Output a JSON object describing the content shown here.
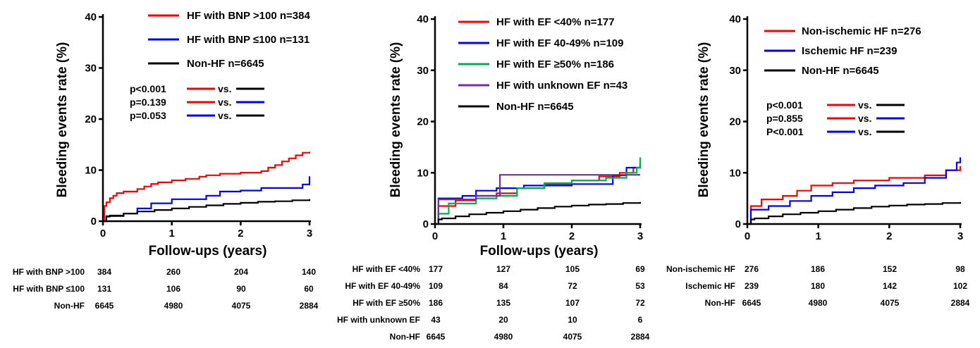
{
  "chart_data": [
    {
      "type": "line",
      "xlabel": "Follow-ups (years)",
      "ylabel": "Bleeding events rate (%)",
      "xlim": [
        0,
        3
      ],
      "ylim": [
        0,
        40
      ],
      "xticks": [
        "0",
        "1",
        "2",
        "3"
      ],
      "yticks": [
        "0",
        "10",
        "20",
        "30",
        "40"
      ],
      "grid": false,
      "legend_position": "top-right",
      "series": [
        {
          "name": "HF with BNP >100 n=384",
          "color": "#ff0000",
          "x": [
            0,
            0.02,
            0.05,
            0.1,
            0.15,
            0.2,
            0.3,
            0.5,
            0.6,
            0.7,
            0.8,
            1.0,
            1.2,
            1.4,
            1.5,
            1.7,
            2.0,
            2.3,
            2.4,
            2.5,
            2.6,
            2.7,
            2.8,
            2.9,
            3.0
          ],
          "y": [
            0,
            3,
            3.7,
            4.5,
            5.0,
            5.5,
            5.8,
            6.3,
            6.8,
            7.3,
            7.6,
            8.0,
            8.3,
            8.7,
            9.0,
            9.3,
            9.5,
            9.8,
            10.5,
            11.0,
            11.7,
            12.3,
            12.9,
            13.4,
            13.6
          ]
        },
        {
          "name": "HF with BNP ≤100 n=131",
          "color": "#0000ff",
          "x": [
            0,
            0.05,
            0.3,
            0.5,
            0.7,
            1.0,
            1.5,
            1.7,
            2.0,
            2.3,
            2.9,
            3.0
          ],
          "y": [
            0,
            1.0,
            1.5,
            2.5,
            3.5,
            4.3,
            5.0,
            5.8,
            6.0,
            6.5,
            7.2,
            8.8
          ]
        },
        {
          "name": "Non-HF n=6645",
          "color": "#000000",
          "x": [
            0,
            0.05,
            0.1,
            0.3,
            0.5,
            0.75,
            1.0,
            1.25,
            1.5,
            1.75,
            2.0,
            2.25,
            2.5,
            2.75,
            3.0
          ],
          "y": [
            0,
            0.9,
            1.1,
            1.5,
            1.9,
            2.2,
            2.5,
            2.8,
            3.1,
            3.4,
            3.6,
            3.8,
            3.9,
            4.1,
            4.3
          ]
        }
      ],
      "pvalues": [
        {
          "label": "p<0.001",
          "vs": "vs.",
          "left_color": "#ff0000",
          "right_color": "#000000"
        },
        {
          "label": "p=0.139",
          "vs": "vs.",
          "left_color": "#ff0000",
          "right_color": "#0000ff"
        },
        {
          "label": "p=0.053",
          "vs": "vs.",
          "left_color": "#0000ff",
          "right_color": "#000000"
        }
      ],
      "risk_table": {
        "rows": [
          {
            "label": "HF with BNP >100",
            "values": [
              "384",
              "260",
              "204",
              "140"
            ]
          },
          {
            "label": "HF with BNP ≤100",
            "values": [
              "131",
              "106",
              "90",
              "60"
            ]
          },
          {
            "label": "Non-HF",
            "values": [
              "6645",
              "4980",
              "4075",
              "2884"
            ]
          }
        ]
      }
    },
    {
      "type": "line",
      "xlabel": "Follow-ups (years)",
      "ylabel": "Bleeding events rate (%)",
      "xlim": [
        0,
        3
      ],
      "ylim": [
        0,
        40
      ],
      "xticks": [
        "0",
        "1",
        "2",
        "3"
      ],
      "yticks": [
        "0",
        "10",
        "20",
        "30",
        "40"
      ],
      "grid": false,
      "legend_position": "top-right",
      "series": [
        {
          "name": "HF with EF <40% n=177",
          "color": "#ff0000",
          "x": [
            0,
            0.05,
            0.3,
            0.6,
            0.9,
            1.2,
            1.6,
            2.0,
            2.4,
            2.7,
            2.9,
            3.0
          ],
          "y": [
            0,
            3.5,
            4.6,
            5.5,
            6.0,
            7.0,
            7.8,
            8.5,
            9.3,
            10.0,
            11.0,
            11.8
          ]
        },
        {
          "name": "HF with EF 40-49% n=109",
          "color": "#0000ff",
          "x": [
            0,
            0.05,
            0.4,
            0.6,
            0.9,
            1.3,
            2.0,
            2.6,
            2.8,
            3.0
          ],
          "y": [
            0,
            5.0,
            5.5,
            6.5,
            7.0,
            7.5,
            7.8,
            9.5,
            11.0,
            12.0
          ]
        },
        {
          "name": "HF with EF ≥50% n=186",
          "color": "#00b050",
          "x": [
            0,
            0.05,
            0.2,
            0.6,
            0.9,
            1.2,
            1.6,
            2.0,
            2.5,
            2.8,
            2.95,
            3.0
          ],
          "y": [
            0,
            2.0,
            4.0,
            5.0,
            5.5,
            7.0,
            8.0,
            8.5,
            9.0,
            10.0,
            11.0,
            13.0
          ]
        },
        {
          "name": "HF with unknown EF n=43",
          "color": "#7030a0",
          "x": [
            0,
            0.05,
            0.6,
            0.95,
            3.0
          ],
          "y": [
            0,
            4.8,
            5.5,
            9.6,
            9.6
          ]
        },
        {
          "name": "Non-HF n=6645",
          "color": "#000000",
          "x": [
            0,
            0.05,
            0.1,
            0.3,
            0.5,
            0.75,
            1.0,
            1.25,
            1.5,
            1.75,
            2.0,
            2.25,
            2.5,
            2.75,
            3.0
          ],
          "y": [
            0,
            0.9,
            1.1,
            1.5,
            1.9,
            2.2,
            2.5,
            2.8,
            3.1,
            3.4,
            3.6,
            3.8,
            3.9,
            4.1,
            4.3
          ]
        }
      ],
      "risk_table": {
        "rows": [
          {
            "label": "HF with EF <40%",
            "values": [
              "177",
              "127",
              "105",
              "69"
            ]
          },
          {
            "label": "HF with EF 40-49%",
            "values": [
              "109",
              "84",
              "72",
              "53"
            ]
          },
          {
            "label": "HF with EF ≥50%",
            "values": [
              "186",
              "135",
              "107",
              "72"
            ]
          },
          {
            "label": "HF with unknown EF",
            "values": [
              "43",
              "20",
              "10",
              "6"
            ]
          },
          {
            "label": "Non-HF",
            "values": [
              "6645",
              "4980",
              "4075",
              "2884"
            ]
          }
        ]
      }
    },
    {
      "type": "line",
      "ylabel": "Bleeding events rate (%)",
      "xlim": [
        0,
        3
      ],
      "ylim": [
        0,
        40
      ],
      "xticks": [
        "0",
        "1",
        "2",
        "3"
      ],
      "yticks": [
        "0",
        "10",
        "20",
        "30",
        "40"
      ],
      "grid": false,
      "legend_position": "top-right",
      "series": [
        {
          "name": "Non-ischemic HF n=276",
          "color": "#ff0000",
          "x": [
            0,
            0.05,
            0.2,
            0.5,
            0.7,
            0.9,
            1.2,
            1.5,
            2.0,
            2.5,
            2.8,
            3.0
          ],
          "y": [
            0,
            3.5,
            4.8,
            5.5,
            6.5,
            7.5,
            8.0,
            8.5,
            9.0,
            9.5,
            10.5,
            11.3
          ]
        },
        {
          "name": "Ischemic HF n=239",
          "color": "#0000ff",
          "x": [
            0,
            0.05,
            0.3,
            0.6,
            0.9,
            1.2,
            1.5,
            1.8,
            2.2,
            2.5,
            2.8,
            2.95,
            3.0
          ],
          "y": [
            0,
            2.8,
            3.5,
            4.5,
            5.5,
            6.2,
            7.0,
            7.5,
            8.0,
            9.0,
            10.5,
            12.0,
            13.0
          ]
        },
        {
          "name": "Non-HF n=6645",
          "color": "#000000",
          "x": [
            0,
            0.05,
            0.1,
            0.3,
            0.5,
            0.75,
            1.0,
            1.25,
            1.5,
            1.75,
            2.0,
            2.25,
            2.5,
            2.75,
            3.0
          ],
          "y": [
            0,
            0.9,
            1.1,
            1.5,
            1.9,
            2.2,
            2.5,
            2.8,
            3.1,
            3.4,
            3.6,
            3.8,
            3.9,
            4.1,
            4.3
          ]
        }
      ],
      "pvalues": [
        {
          "label": "p<0.001",
          "vs": "vs.",
          "left_color": "#ff0000",
          "right_color": "#000000"
        },
        {
          "label": "p=0.855",
          "vs": "vs.",
          "left_color": "#ff0000",
          "right_color": "#0000ff"
        },
        {
          "label": "P<0.001",
          "vs": "vs.",
          "left_color": "#0000ff",
          "right_color": "#000000"
        }
      ],
      "risk_table": {
        "rows": [
          {
            "label": "Non-ischemic HF",
            "values": [
              "276",
              "186",
              "152",
              "98"
            ]
          },
          {
            "label": "Ischemic HF",
            "values": [
              "239",
              "180",
              "142",
              "102"
            ]
          },
          {
            "label": "Non-HF",
            "values": [
              "6645",
              "4980",
              "4075",
              "2884"
            ]
          }
        ]
      }
    }
  ]
}
